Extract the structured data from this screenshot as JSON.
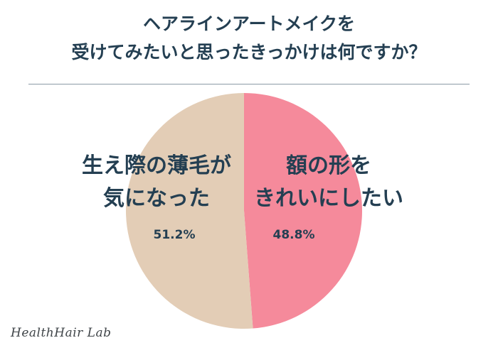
{
  "title_lines": [
    "ヘアラインアートメイクを",
    "受けてみたいと思ったきっかけは何ですか？"
  ],
  "chart_data": {
    "type": "pie",
    "slices": [
      {
        "label_lines": [
          "額の形を",
          "きれいにしたい"
        ],
        "value": 48.8,
        "value_label": "48.8%",
        "color": "#f58a9b"
      },
      {
        "label_lines": [
          "生え際の薄毛が",
          "気になった"
        ],
        "value": 51.2,
        "value_label": "51.2%",
        "color": "#e3cdb6"
      }
    ]
  },
  "logo_text": "HealthHair Lab"
}
